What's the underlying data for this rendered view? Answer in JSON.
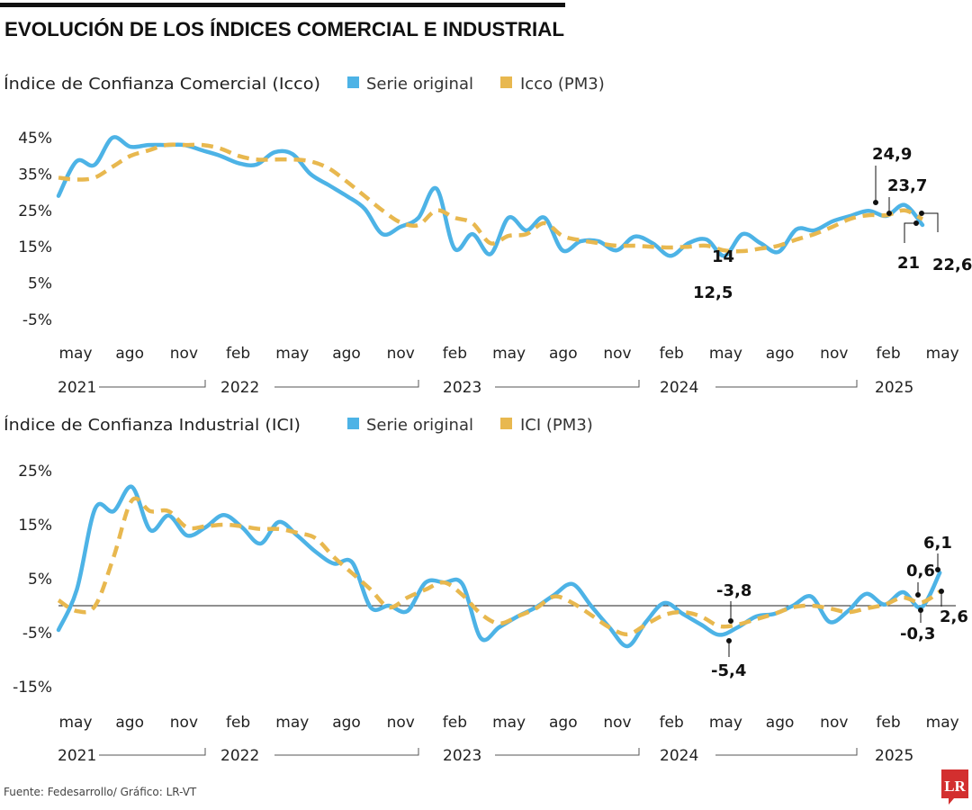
{
  "title": "EVOLUCIÓN DE LOS ÍNDICES COMERCIAL E INDUSTRIAL",
  "source": "Fuente: Fedesarrollo/ Gráfico: LR-VT",
  "logo_text": "LR",
  "colors": {
    "original": "#4db3e6",
    "pm3": "#e8b84f",
    "logo": "#d32f2f"
  },
  "chart_data": [
    {
      "type": "line",
      "title": "Índice de Confianza Comercial (Icco)",
      "ylim": [
        -5,
        45
      ],
      "yticks": [
        "45%",
        "35%",
        "25%",
        "15%",
        "5%",
        "-5%"
      ],
      "ytick_values": [
        45,
        35,
        25,
        15,
        5,
        -5
      ],
      "month_labels": [
        "may",
        "ago",
        "nov",
        "feb",
        "may",
        "ago",
        "nov",
        "feb",
        "may",
        "ago",
        "nov",
        "feb",
        "may",
        "ago",
        "nov",
        "feb",
        "may"
      ],
      "year_labels": [
        "2021",
        "2022",
        "2023",
        "2024",
        "2025"
      ],
      "x_start": "may 2021",
      "x_end": "may 2025",
      "legend": [
        "Serie original",
        "Icco (PM3)"
      ],
      "legend_placement": "top",
      "grid": false,
      "series": [
        {
          "name": "Serie original",
          "values": [
            29,
            38.5,
            37.5,
            45,
            42.5,
            43,
            43,
            43,
            41.5,
            40,
            38,
            37.6,
            41,
            40.5,
            35,
            32,
            29,
            25.5,
            18.5,
            20.5,
            23,
            31,
            14.5,
            18.5,
            13,
            23,
            19.5,
            23,
            14,
            16.5,
            16.5,
            14,
            17.8,
            16,
            12.5,
            16,
            17,
            12.5,
            18.5,
            16,
            13.6,
            19.8,
            19.5,
            22,
            23.5,
            24.9,
            23.5,
            26.5,
            21
          ]
        },
        {
          "name": "Icco (PM3)",
          "values": [
            34,
            33.5,
            34,
            37,
            40,
            41.5,
            43,
            43,
            43,
            42,
            40,
            39,
            39,
            39,
            38.5,
            36.6,
            33,
            29,
            25,
            21.7,
            21,
            25,
            23,
            21.5,
            16,
            18,
            18.5,
            21.5,
            18,
            16.8,
            16,
            15.3,
            15.3,
            15,
            14.8,
            15,
            15.3,
            14,
            13.8,
            14.5,
            15.3,
            17,
            18.5,
            20.5,
            22.7,
            23.7,
            23.7,
            25,
            22.6
          ]
        }
      ],
      "annotations": [
        "24,9",
        "23,7",
        "14",
        "12,5",
        "21",
        "22,6"
      ]
    },
    {
      "type": "line",
      "title": "Índice de Confianza Industrial (ICI)",
      "ylim": [
        -15,
        25
      ],
      "yticks": [
        "25%",
        "15%",
        "5%",
        "-5%",
        "-15%"
      ],
      "ytick_values": [
        25,
        15,
        5,
        -5,
        -15
      ],
      "month_labels": [
        "may",
        "ago",
        "nov",
        "feb",
        "may",
        "ago",
        "nov",
        "feb",
        "may",
        "ago",
        "nov",
        "feb",
        "may",
        "ago",
        "nov",
        "feb",
        "may"
      ],
      "year_labels": [
        "2021",
        "2022",
        "2023",
        "2024",
        "2025"
      ],
      "x_start": "may 2021",
      "x_end": "may 2025",
      "legend": [
        "Serie original",
        "ICI (PM3)"
      ],
      "legend_placement": "top",
      "grid": false,
      "zero_line": true,
      "series": [
        {
          "name": "Serie original",
          "values": [
            -4.5,
            3,
            18,
            17.5,
            22,
            14,
            16.7,
            13,
            14.5,
            16.8,
            14.5,
            11.5,
            15.5,
            13,
            10,
            7.8,
            8,
            -0.3,
            0,
            -1,
            4.3,
            4.3,
            4,
            -6,
            -4,
            -2,
            -0.3,
            2,
            4,
            0,
            -4,
            -7.5,
            -3,
            0.5,
            -1.5,
            -3.5,
            -5.4,
            -4,
            -2,
            -1.5,
            0,
            1.7,
            -3,
            -1,
            2.2,
            0.2,
            2.5,
            -0.3,
            6.1
          ]
        },
        {
          "name": "ICI (PM3)",
          "values": [
            1,
            -1,
            0,
            9,
            19.5,
            17.5,
            17.5,
            14.5,
            14.7,
            15,
            14.7,
            14.2,
            14.2,
            13.5,
            12.5,
            9,
            6,
            3,
            -0.3,
            1.5,
            3,
            4.3,
            2,
            -1.5,
            -3.3,
            -2,
            -0.5,
            1.7,
            0.5,
            -1.7,
            -4,
            -5.3,
            -3.5,
            -1.7,
            -1.2,
            -2,
            -3.8,
            -3.5,
            -2.5,
            -1.5,
            -0.3,
            0,
            -0.5,
            -1.2,
            -0.5,
            0.2,
            1.5,
            0.6,
            2.6
          ]
        }
      ],
      "annotations": [
        "-3,8",
        "-5,4",
        "0,6",
        "-0,3",
        "6,1",
        "2,6"
      ]
    }
  ]
}
